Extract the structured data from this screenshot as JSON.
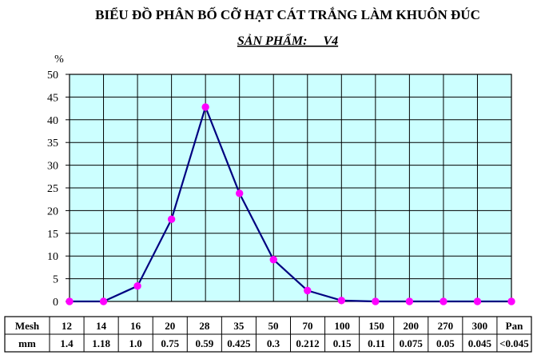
{
  "chart_data": {
    "type": "line",
    "title": "BIỂU ĐỒ PHÂN BỐ CỠ HẠT CÁT TRẮNG LÀM KHUÔN ĐÚC",
    "subtitle": "SẢN PHẨM:     V4",
    "ylabel": "%",
    "ylim": [
      0,
      50
    ],
    "yticks": [
      "0",
      "5",
      "10",
      "15",
      "20",
      "25",
      "30",
      "35",
      "40",
      "45",
      "50"
    ],
    "grid": true,
    "plot_background": "#ccffff",
    "line_color": "#000080",
    "marker_color": "#ff00ff",
    "table": {
      "row1_label": "Mesh",
      "row2_label": "mm",
      "mesh": [
        "12",
        "14",
        "16",
        "20",
        "28",
        "35",
        "50",
        "70",
        "100",
        "150",
        "200",
        "270",
        "300",
        "Pan"
      ],
      "mm": [
        "1.4",
        "1.18",
        "1.0",
        "0.75",
        "0.59",
        "0.425",
        "0.3",
        "0.212",
        "0.15",
        "0.11",
        "0.075",
        "0.05",
        "0.045",
        "<0.045"
      ]
    },
    "categories": [
      "12",
      "14",
      "16",
      "20",
      "28",
      "35",
      "50",
      "70",
      "100",
      "150",
      "200",
      "270",
      "300",
      "Pan"
    ],
    "values": [
      0,
      0,
      3.4,
      18.1,
      42.8,
      23.8,
      9.2,
      2.4,
      0.2,
      0,
      0,
      0,
      0,
      0
    ]
  }
}
